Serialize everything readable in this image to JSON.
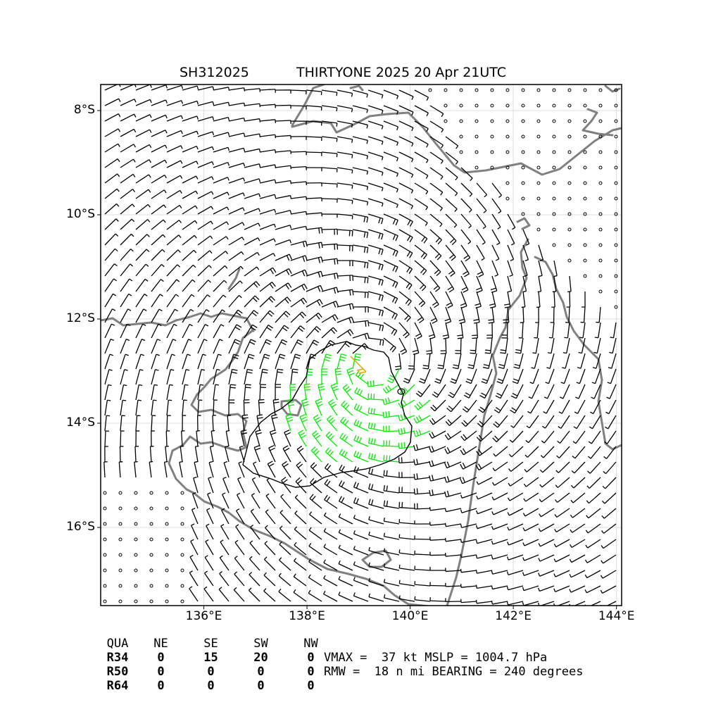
{
  "title": {
    "storm_id": "SH312025",
    "storm_info": "THIRTYONE 2025 20 Apr 21UTC"
  },
  "chart_data": {
    "type": "wind_barb_map",
    "lon_range": [
      134.0,
      144.1
    ],
    "lat_range": [
      -17.5,
      -7.5
    ],
    "x_ticks": [
      {
        "value": 136,
        "label": "136°E"
      },
      {
        "value": 138,
        "label": "138°E"
      },
      {
        "value": 140,
        "label": "140°E"
      },
      {
        "value": 142,
        "label": "142°E"
      },
      {
        "value": 144,
        "label": "144°E"
      }
    ],
    "y_ticks": [
      {
        "value": -8,
        "label": "8°S"
      },
      {
        "value": -10,
        "label": "10°S"
      },
      {
        "value": -12,
        "label": "12°S"
      },
      {
        "value": -14,
        "label": "14°S"
      },
      {
        "value": -16,
        "label": "16°S"
      }
    ],
    "grid": true,
    "storm_center": {
      "lon": 139.3,
      "lat": -12.9
    },
    "rotation": "clockwise",
    "rmw_nmi": 18,
    "vmax_kt": 37,
    "bearing_deg": 240,
    "barb_colors": {
      "below_34kt": "#000000",
      "gale_34kt": "#00ee00",
      "max": "#e6a000"
    },
    "coastline_color": "#808080",
    "r34_contour_color": "#000000"
  },
  "radii_table": {
    "headers": [
      "QUA",
      "NE",
      "SE",
      "SW",
      "NW"
    ],
    "rows": [
      {
        "label": "R34",
        "values": [
          "0",
          "15",
          "20",
          "0"
        ]
      },
      {
        "label": "R50",
        "values": [
          "0",
          "0",
          "0",
          "0"
        ]
      },
      {
        "label": "R64",
        "values": [
          "0",
          "0",
          "0",
          "0"
        ]
      }
    ]
  },
  "stats": {
    "line1": "VMAX =  37 kt MSLP = 1004.7 hPa",
    "line2": "RMW =  18 n mi BEARING = 240 degrees"
  }
}
